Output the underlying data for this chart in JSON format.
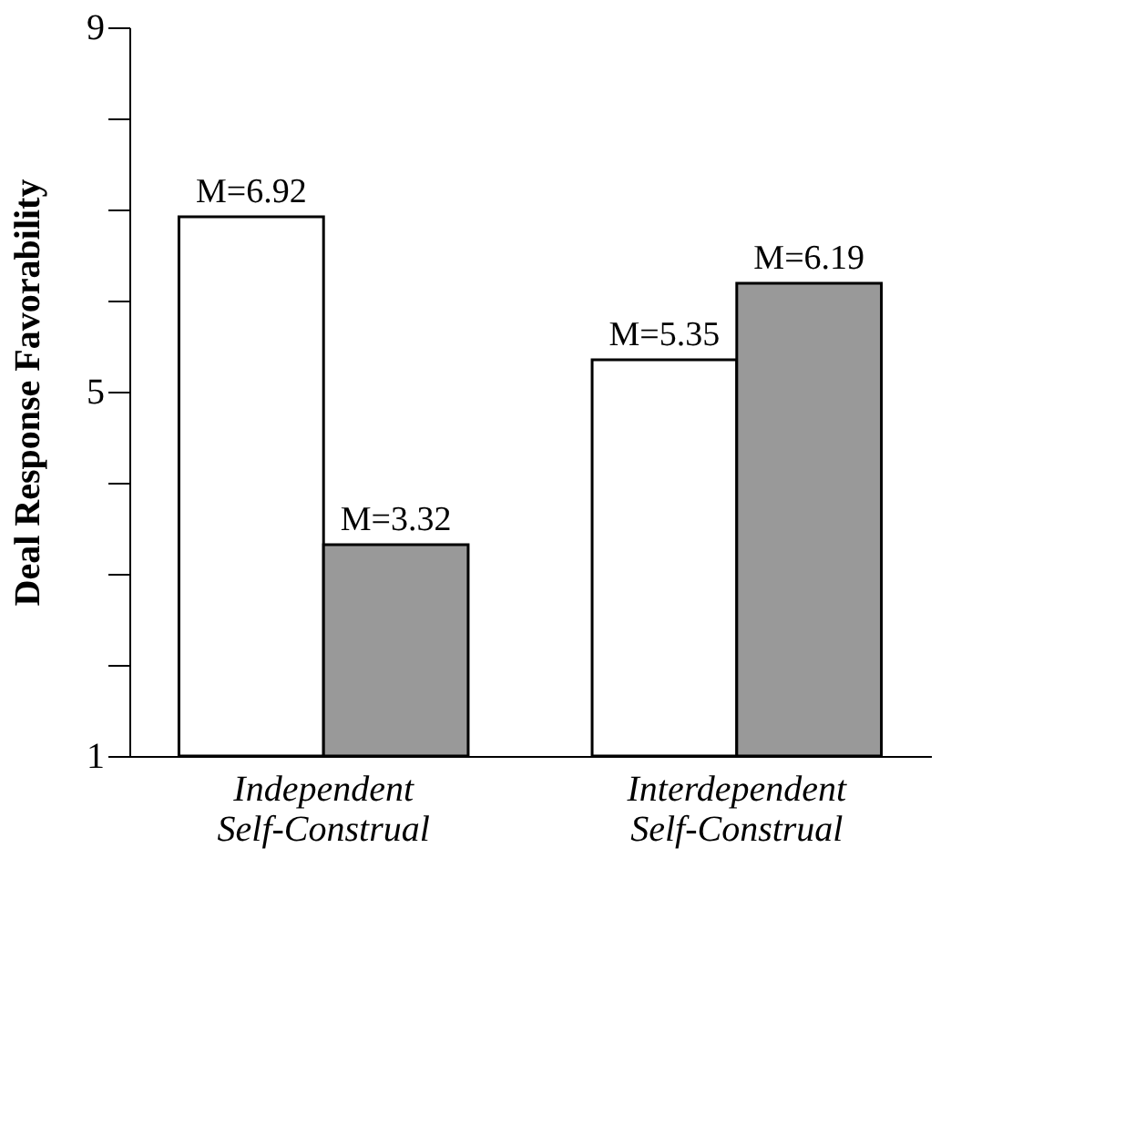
{
  "chart_data": {
    "type": "bar",
    "ylabel": "Deal Response Favorability",
    "categories": [
      "Independent Self-Construal",
      "Interdependent Self-Construal"
    ],
    "series": [
      {
        "color": "#ffffff",
        "values": [
          6.92,
          5.35
        ],
        "value_labels": [
          "M=6.92",
          "M=5.35"
        ]
      },
      {
        "color": "#999999",
        "values": [
          3.32,
          6.19
        ],
        "value_labels": [
          "M=3.32",
          "M=6.19"
        ]
      }
    ],
    "ylim": [
      1,
      9
    ],
    "yticks": [
      1,
      {
        "value": 2,
        "label": null
      },
      {
        "value": 3,
        "label": null
      },
      {
        "value": 4,
        "label": null
      },
      5,
      {
        "value": 6,
        "label": null
      },
      {
        "value": 7,
        "label": null
      },
      {
        "value": 8,
        "label": null
      },
      9
    ],
    "grid": false,
    "legend": false
  }
}
